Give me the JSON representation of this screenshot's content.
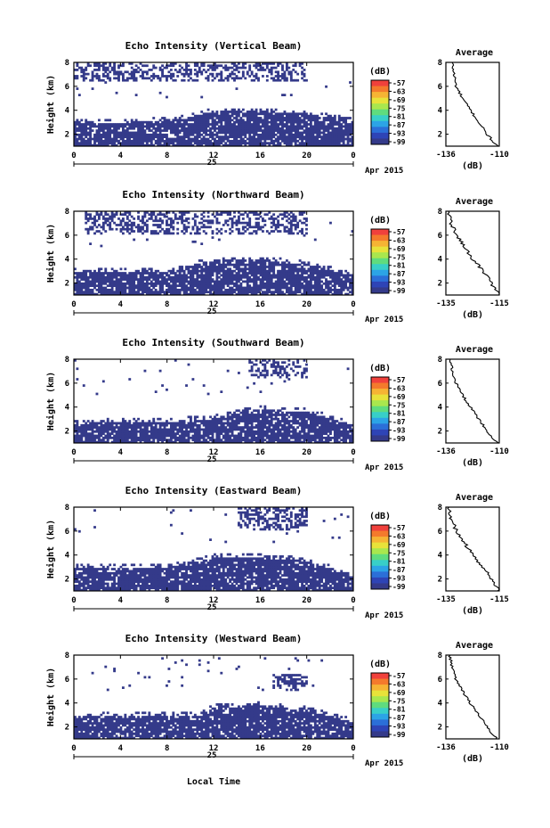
{
  "figure": {
    "shared_xlabel": "Local Time",
    "date_label": "25",
    "month_label": "Apr 2015",
    "ylabel": "Height (km)",
    "avg_xlabel": "(dB)",
    "colorbar_unit": "(dB)",
    "colorbar_ticks": [
      "-57",
      "-63",
      "-69",
      "-75",
      "-81",
      "-87",
      "-93",
      "-99"
    ],
    "colorbar_colors": [
      "#f0413c",
      "#f47a2c",
      "#f6b434",
      "#e8e23a",
      "#a9e74e",
      "#5fdc7e",
      "#38cfc8",
      "#2ca4e6",
      "#2b6fd8",
      "#2e44b6",
      "#343a8a"
    ]
  },
  "chart_data": [
    {
      "type": "heatmap",
      "title": "Echo Intensity (Vertical Beam)",
      "xlabel": "Local Time",
      "ylabel": "Height (km)",
      "xlim": [
        0,
        24
      ],
      "ylim": [
        1,
        8
      ],
      "xticks": [
        "0",
        "4",
        "8",
        "12",
        "16",
        "20",
        "0"
      ],
      "yticks": [
        "2",
        "4",
        "6",
        "8"
      ],
      "colorbar": {
        "label": "(dB)",
        "min": -99,
        "max": -57
      },
      "low_layer": {
        "base_km": 1.0,
        "top_km_at_hours": [
          [
            0,
            3.0
          ],
          [
            4,
            3.0
          ],
          [
            8,
            3.1
          ],
          [
            10,
            3.4
          ],
          [
            12,
            3.9
          ],
          [
            16,
            3.9
          ],
          [
            20,
            3.7
          ],
          [
            24,
            3.1
          ]
        ]
      },
      "upper_patches": [
        [
          0,
          20,
          6.5,
          8.0
        ]
      ],
      "dominant_value_db": -96,
      "average": {
        "xlim": [
          -136,
          -110
        ],
        "xticks": [
          "-136",
          "-110"
        ],
        "yticks": [
          "2",
          "4",
          "6",
          "8"
        ],
        "profile": [
          [
            -133,
            8.0
          ],
          [
            -132,
            7.0
          ],
          [
            -131,
            6.0
          ],
          [
            -128,
            5.0
          ],
          [
            -124,
            4.0
          ],
          [
            -120,
            3.0
          ],
          [
            -116,
            2.0
          ],
          [
            -111,
            1.0
          ]
        ]
      }
    },
    {
      "type": "heatmap",
      "title": "Echo Intensity (Northward Beam)",
      "xlabel": "Local Time",
      "ylabel": "Height (km)",
      "xlim": [
        0,
        24
      ],
      "ylim": [
        1,
        8
      ],
      "xticks": [
        "0",
        "4",
        "8",
        "12",
        "16",
        "20",
        "0"
      ],
      "yticks": [
        "2",
        "4",
        "6",
        "8"
      ],
      "colorbar": {
        "label": "(dB)",
        "min": -99,
        "max": -57
      },
      "low_layer": {
        "base_km": 1.0,
        "top_km_at_hours": [
          [
            0,
            2.9
          ],
          [
            4,
            3.0
          ],
          [
            8,
            3.0
          ],
          [
            10,
            3.4
          ],
          [
            12,
            3.9
          ],
          [
            16,
            3.9
          ],
          [
            20,
            3.6
          ],
          [
            24,
            2.6
          ]
        ]
      },
      "upper_patches": [
        [
          1,
          20,
          6.0,
          8.0
        ]
      ],
      "dominant_value_db": -96,
      "average": {
        "xlim": [
          -135,
          -115
        ],
        "xticks": [
          "-135",
          "-115"
        ],
        "yticks": [
          "2",
          "4",
          "6",
          "8"
        ],
        "profile": [
          [
            -134,
            8.0
          ],
          [
            -133,
            7.0
          ],
          [
            -131,
            6.0
          ],
          [
            -128,
            5.0
          ],
          [
            -125,
            4.0
          ],
          [
            -121,
            3.0
          ],
          [
            -118,
            2.0
          ],
          [
            -115,
            1.0
          ]
        ]
      }
    },
    {
      "type": "heatmap",
      "title": "Echo Intensity (Southward Beam)",
      "xlabel": "Local Time",
      "ylabel": "Height (km)",
      "xlim": [
        0,
        24
      ],
      "ylim": [
        1,
        8
      ],
      "xticks": [
        "0",
        "4",
        "8",
        "12",
        "16",
        "20",
        "0"
      ],
      "yticks": [
        "2",
        "4",
        "6",
        "8"
      ],
      "colorbar": {
        "label": "(dB)",
        "min": -99,
        "max": -57
      },
      "low_layer": {
        "base_km": 1.0,
        "top_km_at_hours": [
          [
            0,
            2.6
          ],
          [
            4,
            2.8
          ],
          [
            8,
            2.8
          ],
          [
            12,
            3.0
          ],
          [
            14,
            3.5
          ],
          [
            16,
            3.8
          ],
          [
            20,
            3.6
          ],
          [
            24,
            2.5
          ]
        ]
      },
      "upper_patches": [
        [
          15,
          20,
          6.5,
          8.0
        ]
      ],
      "dominant_value_db": -96,
      "average": {
        "xlim": [
          -136,
          -110
        ],
        "xticks": [
          "-136",
          "-110"
        ],
        "yticks": [
          "2",
          "4",
          "6",
          "8"
        ],
        "profile": [
          [
            -134,
            8.0
          ],
          [
            -133,
            7.0
          ],
          [
            -131,
            6.0
          ],
          [
            -128,
            5.0
          ],
          [
            -124,
            4.0
          ],
          [
            -120,
            3.0
          ],
          [
            -116,
            2.0
          ],
          [
            -111,
            1.0
          ]
        ]
      }
    },
    {
      "type": "heatmap",
      "title": "Echo Intensity (Eastward Beam)",
      "xlabel": "Local Time",
      "ylabel": "Height (km)",
      "xlim": [
        0,
        24
      ],
      "ylim": [
        1,
        8
      ],
      "xticks": [
        "0",
        "4",
        "8",
        "12",
        "16",
        "20",
        "0"
      ],
      "yticks": [
        "2",
        "4",
        "6",
        "8"
      ],
      "colorbar": {
        "label": "(dB)",
        "min": -99,
        "max": -57
      },
      "low_layer": {
        "base_km": 1.0,
        "top_km_at_hours": [
          [
            0,
            3.0
          ],
          [
            4,
            3.0
          ],
          [
            8,
            3.0
          ],
          [
            10,
            3.3
          ],
          [
            12,
            3.8
          ],
          [
            16,
            3.8
          ],
          [
            20,
            3.5
          ],
          [
            24,
            2.2
          ]
        ]
      },
      "upper_patches": [
        [
          14,
          20,
          6.0,
          8.0
        ]
      ],
      "dominant_value_db": -96,
      "average": {
        "xlim": [
          -135,
          -115
        ],
        "xticks": [
          "-135",
          "-115"
        ],
        "yticks": [
          "2",
          "4",
          "6",
          "8"
        ],
        "profile": [
          [
            -134,
            8.0
          ],
          [
            -133,
            7.0
          ],
          [
            -131,
            6.0
          ],
          [
            -128,
            5.0
          ],
          [
            -125,
            4.0
          ],
          [
            -121,
            3.0
          ],
          [
            -118,
            2.0
          ],
          [
            -115,
            1.0
          ]
        ]
      }
    },
    {
      "type": "heatmap",
      "title": "Echo Intensity (Westward Beam)",
      "xlabel": "Local Time",
      "ylabel": "Height (km)",
      "xlim": [
        0,
        24
      ],
      "ylim": [
        1,
        8
      ],
      "xticks": [
        "0",
        "4",
        "8",
        "12",
        "16",
        "20",
        "0"
      ],
      "yticks": [
        "2",
        "4",
        "6",
        "8"
      ],
      "colorbar": {
        "label": "(dB)",
        "min": -99,
        "max": -57
      },
      "low_layer": {
        "base_km": 1.0,
        "top_km_at_hours": [
          [
            0,
            2.8
          ],
          [
            4,
            3.0
          ],
          [
            8,
            3.0
          ],
          [
            11,
            3.0
          ],
          [
            12,
            3.6
          ],
          [
            16,
            3.8
          ],
          [
            20,
            3.4
          ],
          [
            24,
            2.4
          ]
        ]
      },
      "upper_patches": [
        [
          17,
          20,
          5.0,
          6.5
        ]
      ],
      "dominant_value_db": -96,
      "average": {
        "xlim": [
          -136,
          -110
        ],
        "xticks": [
          "-136",
          "-110"
        ],
        "yticks": [
          "2",
          "4",
          "6",
          "8"
        ],
        "profile": [
          [
            -134,
            8.0
          ],
          [
            -133,
            7.0
          ],
          [
            -131,
            6.0
          ],
          [
            -128,
            5.0
          ],
          [
            -124,
            4.0
          ],
          [
            -120,
            3.0
          ],
          [
            -116,
            2.0
          ],
          [
            -111,
            1.0
          ]
        ]
      }
    }
  ]
}
